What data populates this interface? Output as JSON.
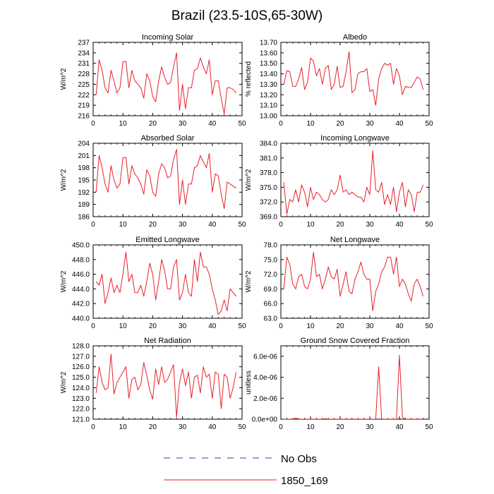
{
  "page": {
    "title": "Brazil (23.5-10S,65-30W)"
  },
  "legend": {
    "items": [
      {
        "label": "No Obs",
        "color": "#3b3bb0",
        "style": "dashed"
      },
      {
        "label": "1850_169",
        "color": "#e8202a",
        "style": "solid"
      }
    ]
  },
  "chart_data": [
    {
      "type": "line",
      "title": "Incoming Solar",
      "ylabel": "W/m^2",
      "xlim": [
        0,
        50
      ],
      "xticks": [
        0,
        10,
        20,
        30,
        40,
        50
      ],
      "ylim": [
        216,
        237
      ],
      "yticks": [
        216,
        219,
        222,
        225,
        228,
        231,
        234,
        237
      ],
      "ytick_labels": [
        "216",
        "219",
        "222",
        "225",
        "228",
        "231",
        "234",
        "237"
      ],
      "series": [
        {
          "color": "#e8202a",
          "x": [
            1,
            2,
            3,
            4,
            5,
            6,
            7,
            8,
            9,
            10,
            11,
            12,
            13,
            14,
            15,
            16,
            17,
            18,
            19,
            20,
            21,
            22,
            23,
            24,
            25,
            26,
            27,
            28,
            29,
            30,
            31,
            32,
            33,
            34,
            35,
            36,
            37,
            38,
            39,
            40,
            41,
            42,
            43,
            44,
            45,
            46,
            47,
            48
          ],
          "y": [
            222.0,
            232.0,
            229.0,
            224.0,
            222.5,
            229.0,
            226.0,
            222.5,
            224.0,
            231.5,
            231.5,
            224.0,
            229.0,
            226.0,
            225.0,
            224.0,
            221.0,
            228.0,
            226.0,
            221.5,
            220.0,
            226.0,
            230.0,
            227.0,
            225.0,
            225.5,
            230.0,
            234.0,
            217.5,
            225.0,
            218.0,
            224.0,
            224.0,
            229.0,
            229.5,
            232.5,
            230.0,
            228.0,
            232.0,
            222.0,
            226.0,
            226.0,
            221.0,
            216.5,
            224.0,
            224.0,
            223.5,
            222.5
          ]
        }
      ]
    },
    {
      "type": "line",
      "title": "Albedo",
      "ylabel": "% reflected",
      "xlim": [
        0,
        50
      ],
      "xticks": [
        0,
        10,
        20,
        30,
        40,
        50
      ],
      "ylim": [
        13.0,
        13.7
      ],
      "yticks": [
        13.0,
        13.1,
        13.2,
        13.3,
        13.4,
        13.5,
        13.6,
        13.7
      ],
      "ytick_labels": [
        "13.00",
        "13.10",
        "13.20",
        "13.30",
        "13.40",
        "13.50",
        "13.60",
        "13.70"
      ],
      "series": [
        {
          "color": "#e8202a",
          "x": [
            1,
            2,
            3,
            4,
            5,
            6,
            7,
            8,
            9,
            10,
            11,
            12,
            13,
            14,
            15,
            16,
            17,
            18,
            19,
            20,
            21,
            22,
            23,
            24,
            25,
            26,
            27,
            28,
            29,
            30,
            31,
            32,
            33,
            34,
            35,
            36,
            37,
            38,
            39,
            40,
            41,
            42,
            43,
            44,
            45,
            46,
            47,
            48
          ],
          "y": [
            13.3,
            13.43,
            13.42,
            13.28,
            13.28,
            13.35,
            13.46,
            13.25,
            13.32,
            13.55,
            13.52,
            13.38,
            13.45,
            13.3,
            13.45,
            13.48,
            13.25,
            13.3,
            13.47,
            13.27,
            13.28,
            13.42,
            13.61,
            13.22,
            13.25,
            13.4,
            13.42,
            13.42,
            13.45,
            13.23,
            13.25,
            13.1,
            13.35,
            13.45,
            13.5,
            13.48,
            13.5,
            13.3,
            13.45,
            13.38,
            13.2,
            13.28,
            13.27,
            13.27,
            13.32,
            13.37,
            13.35,
            13.25
          ]
        }
      ]
    },
    {
      "type": "line",
      "title": "Absorbed Solar",
      "ylabel": "W/m^2",
      "xlim": [
        0,
        50
      ],
      "xticks": [
        0,
        10,
        20,
        30,
        40,
        50
      ],
      "ylim": [
        186,
        204
      ],
      "yticks": [
        186,
        189,
        192,
        195,
        198,
        201,
        204
      ],
      "ytick_labels": [
        "186",
        "189",
        "192",
        "195",
        "198",
        "201",
        "204"
      ],
      "series": [
        {
          "color": "#e8202a",
          "x": [
            1,
            2,
            3,
            4,
            5,
            6,
            7,
            8,
            9,
            10,
            11,
            12,
            13,
            14,
            15,
            16,
            17,
            18,
            19,
            20,
            21,
            22,
            23,
            24,
            25,
            26,
            27,
            28,
            29,
            30,
            31,
            32,
            33,
            34,
            35,
            36,
            37,
            38,
            39,
            40,
            41,
            42,
            43,
            44,
            45,
            46,
            47,
            48
          ],
          "y": [
            192.0,
            201.0,
            198.0,
            194.0,
            192.0,
            198.5,
            195.0,
            193.0,
            194.0,
            200.5,
            200.5,
            194.0,
            198.5,
            196.5,
            195.5,
            194.0,
            191.5,
            197.5,
            196.0,
            192.0,
            191.0,
            196.5,
            199.0,
            198.0,
            195.5,
            196.0,
            200.0,
            202.5,
            189.0,
            195.0,
            189.0,
            194.0,
            194.0,
            198.0,
            198.5,
            201.0,
            199.5,
            198.0,
            201.5,
            192.0,
            196.5,
            196.0,
            191.5,
            188.0,
            194.5,
            194.0,
            193.5,
            193.0
          ]
        }
      ]
    },
    {
      "type": "line",
      "title": "Incoming Longwave",
      "ylabel": "W/m^2",
      "xlim": [
        0,
        50
      ],
      "xticks": [
        0,
        10,
        20,
        30,
        40,
        50
      ],
      "ylim": [
        369,
        384
      ],
      "yticks": [
        369,
        372,
        375,
        378,
        381,
        384
      ],
      "ytick_labels": [
        "369.0",
        "372.0",
        "375.0",
        "378.0",
        "381.0",
        "384.0"
      ],
      "series": [
        {
          "color": "#e8202a",
          "x": [
            1,
            2,
            3,
            4,
            5,
            6,
            7,
            8,
            9,
            10,
            11,
            12,
            13,
            14,
            15,
            16,
            17,
            18,
            19,
            20,
            21,
            22,
            23,
            24,
            25,
            26,
            27,
            28,
            29,
            30,
            31,
            32,
            33,
            34,
            35,
            36,
            37,
            38,
            39,
            40,
            41,
            42,
            43,
            44,
            45,
            46,
            47,
            48
          ],
          "y": [
            376.0,
            369.5,
            372.5,
            372.0,
            374.5,
            372.0,
            375.5,
            374.0,
            371.0,
            375.0,
            372.5,
            374.0,
            373.5,
            372.5,
            372.0,
            372.5,
            374.5,
            373.5,
            374.5,
            377.5,
            374.0,
            374.5,
            373.5,
            374.0,
            373.5,
            373.0,
            373.0,
            372.0,
            375.0,
            373.5,
            382.5,
            374.5,
            374.0,
            376.0,
            371.5,
            373.5,
            371.5,
            375.0,
            370.0,
            374.0,
            376.0,
            371.0,
            374.5,
            373.5,
            370.0,
            374.0,
            374.0,
            375.5
          ]
        }
      ]
    },
    {
      "type": "line",
      "title": "Emitted Longwave",
      "ylabel": "W/m^2",
      "xlim": [
        0,
        50
      ],
      "xticks": [
        0,
        10,
        20,
        30,
        40,
        50
      ],
      "ylim": [
        440,
        450
      ],
      "yticks": [
        440,
        442,
        444,
        446,
        448,
        450
      ],
      "ytick_labels": [
        "440.0",
        "442.0",
        "444.0",
        "446.0",
        "448.0",
        "450.0"
      ],
      "series": [
        {
          "color": "#e8202a",
          "x": [
            1,
            2,
            3,
            4,
            5,
            6,
            7,
            8,
            9,
            10,
            11,
            12,
            13,
            14,
            15,
            16,
            17,
            18,
            19,
            20,
            21,
            22,
            23,
            24,
            25,
            26,
            27,
            28,
            29,
            30,
            31,
            32,
            33,
            34,
            35,
            36,
            37,
            38,
            39,
            40,
            41,
            42,
            43,
            44,
            45,
            46,
            47,
            48
          ],
          "y": [
            445.0,
            444.5,
            446.0,
            442.0,
            443.5,
            445.5,
            443.5,
            444.5,
            443.5,
            446.0,
            449.0,
            445.0,
            446.0,
            443.5,
            443.5,
            444.5,
            443.0,
            445.0,
            447.5,
            446.0,
            442.5,
            445.0,
            448.0,
            446.5,
            444.0,
            444.0,
            447.0,
            448.0,
            442.5,
            443.5,
            446.0,
            443.5,
            443.0,
            448.0,
            445.0,
            449.0,
            447.0,
            447.0,
            446.0,
            444.0,
            442.5,
            440.5,
            441.0,
            442.5,
            441.0,
            444.0,
            443.5,
            443.0
          ]
        }
      ]
    },
    {
      "type": "line",
      "title": "Net Longwave",
      "ylabel": "W/m^2",
      "xlim": [
        0,
        50
      ],
      "xticks": [
        0,
        10,
        20,
        30,
        40,
        50
      ],
      "ylim": [
        63,
        78
      ],
      "yticks": [
        63,
        66,
        69,
        72,
        75,
        78
      ],
      "ytick_labels": [
        "63.0",
        "66.0",
        "69.0",
        "72.0",
        "75.0",
        "78.0"
      ],
      "series": [
        {
          "color": "#e8202a",
          "x": [
            1,
            2,
            3,
            4,
            5,
            6,
            7,
            8,
            9,
            10,
            11,
            12,
            13,
            14,
            15,
            16,
            17,
            18,
            19,
            20,
            21,
            22,
            23,
            24,
            25,
            26,
            27,
            28,
            29,
            30,
            31,
            32,
            33,
            34,
            35,
            36,
            37,
            38,
            39,
            40,
            41,
            42,
            43,
            44,
            45,
            46,
            47,
            48
          ],
          "y": [
            69.0,
            75.5,
            74.0,
            70.0,
            69.0,
            71.5,
            72.0,
            69.5,
            69.0,
            71.0,
            76.5,
            71.5,
            72.0,
            69.0,
            71.0,
            73.5,
            71.5,
            71.0,
            73.0,
            67.5,
            70.0,
            72.5,
            68.5,
            68.0,
            71.0,
            72.5,
            74.5,
            72.0,
            71.0,
            71.0,
            64.5,
            68.5,
            70.0,
            72.5,
            73.5,
            75.5,
            75.5,
            72.0,
            75.5,
            69.5,
            71.0,
            70.0,
            68.0,
            66.5,
            70.0,
            71.0,
            69.5,
            67.5
          ]
        }
      ]
    },
    {
      "type": "line",
      "title": "Net Radiation",
      "ylabel": "W/m^2",
      "xlim": [
        0,
        50
      ],
      "xticks": [
        0,
        10,
        20,
        30,
        40,
        50
      ],
      "ylim": [
        121,
        128
      ],
      "yticks": [
        121,
        122,
        123,
        124,
        125,
        126,
        127,
        128
      ],
      "ytick_labels": [
        "121.0",
        "122.0",
        "123.0",
        "124.0",
        "125.0",
        "126.0",
        "127.0",
        "128.0"
      ],
      "series": [
        {
          "color": "#e8202a",
          "x": [
            1,
            2,
            3,
            4,
            5,
            6,
            7,
            8,
            9,
            10,
            11,
            12,
            13,
            14,
            15,
            16,
            17,
            18,
            19,
            20,
            21,
            22,
            23,
            24,
            25,
            26,
            27,
            28,
            29,
            30,
            31,
            32,
            33,
            34,
            35,
            36,
            37,
            38,
            39,
            40,
            41,
            42,
            43,
            44,
            45,
            46,
            47,
            48
          ],
          "y": [
            123.5,
            126.0,
            124.5,
            123.8,
            124.0,
            127.2,
            123.4,
            124.5,
            125.0,
            125.5,
            126.0,
            123.0,
            124.8,
            125.0,
            123.8,
            124.3,
            126.4,
            125.2,
            123.8,
            122.9,
            125.8,
            124.3,
            126.0,
            124.5,
            124.8,
            125.5,
            126.2,
            121.2,
            124.5,
            125.8,
            124.2,
            125.5,
            123.0,
            125.0,
            125.2,
            123.5,
            126.0,
            125.0,
            125.3,
            123.0,
            125.5,
            125.3,
            122.0,
            125.3,
            125.0,
            123.0,
            124.0,
            125.5
          ]
        }
      ]
    },
    {
      "type": "line",
      "title": "Ground Snow Covered Fraction",
      "ylabel": "unitless",
      "xlim": [
        0,
        50
      ],
      "xticks": [
        0,
        10,
        20,
        30,
        40,
        50
      ],
      "ylim": [
        0,
        7e-06
      ],
      "yticks": [
        0,
        2e-06,
        4e-06,
        6e-06
      ],
      "ytick_labels": [
        "0.0e+00",
        "2.0e-06",
        "4.0e-06",
        "6.0e-06"
      ],
      "series": [
        {
          "color": "#e8202a",
          "x": [
            1,
            2,
            3,
            4,
            5,
            6,
            7,
            8,
            9,
            10,
            11,
            12,
            13,
            14,
            15,
            16,
            17,
            18,
            19,
            20,
            21,
            22,
            23,
            24,
            25,
            26,
            27,
            28,
            29,
            30,
            31,
            32,
            33,
            34,
            35,
            36,
            37,
            38,
            39,
            40,
            41,
            42,
            43,
            44,
            45,
            46,
            47,
            48
          ],
          "y": [
            0,
            0,
            0,
            0,
            1e-07,
            0,
            0,
            0,
            0,
            0,
            0,
            0,
            0,
            0,
            5e-08,
            0,
            0,
            0,
            0,
            0,
            0,
            0,
            0,
            0,
            0,
            0,
            0,
            0,
            0,
            0,
            0,
            0,
            5e-06,
            0,
            0,
            0,
            0,
            0,
            0,
            6.1e-06,
            2e-07,
            0,
            0,
            0,
            0,
            0,
            0,
            0
          ]
        }
      ]
    }
  ]
}
